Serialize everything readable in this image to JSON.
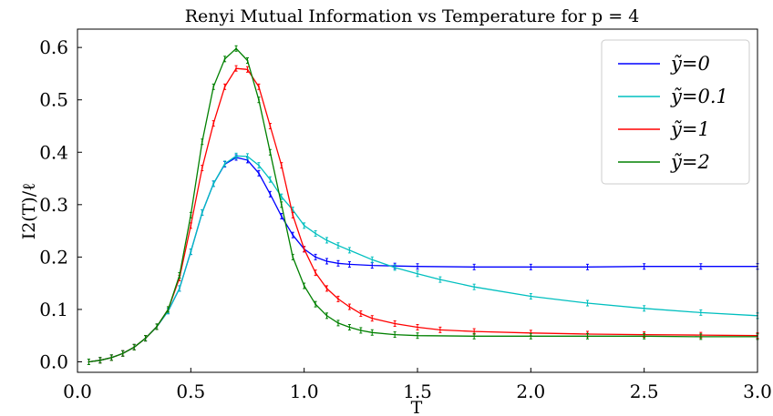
{
  "chart_data": {
    "type": "line",
    "title": "Renyi Mutual Information vs Temperature for p = 4",
    "xlabel": "T",
    "ylabel": "I2(T)/ℓ",
    "xlim": [
      0.0,
      3.0
    ],
    "ylim": [
      -0.02,
      0.635
    ],
    "xticks": [
      0.0,
      0.5,
      1.0,
      1.5,
      2.0,
      2.5,
      3.0
    ],
    "xtick_labels": [
      "0.0",
      "0.5",
      "1.0",
      "1.5",
      "2.0",
      "2.5",
      "3.0"
    ],
    "yticks": [
      0.0,
      0.1,
      0.2,
      0.3,
      0.4,
      0.5,
      0.6
    ],
    "ytick_labels": [
      "0.0",
      "0.1",
      "0.2",
      "0.3",
      "0.4",
      "0.5",
      "0.6"
    ],
    "grid": false,
    "legend_position": "top-right",
    "error_bars": true,
    "series": [
      {
        "name": "ỹ=0",
        "color": "#0000ff",
        "points": [
          [
            0.05,
            0.0
          ],
          [
            0.1,
            0.003
          ],
          [
            0.15,
            0.008
          ],
          [
            0.2,
            0.016
          ],
          [
            0.25,
            0.028
          ],
          [
            0.3,
            0.045
          ],
          [
            0.35,
            0.067
          ],
          [
            0.4,
            0.097
          ],
          [
            0.45,
            0.14
          ],
          [
            0.5,
            0.21
          ],
          [
            0.55,
            0.285
          ],
          [
            0.6,
            0.34
          ],
          [
            0.65,
            0.377
          ],
          [
            0.7,
            0.39
          ],
          [
            0.75,
            0.385
          ],
          [
            0.8,
            0.36
          ],
          [
            0.85,
            0.32
          ],
          [
            0.9,
            0.278
          ],
          [
            0.95,
            0.242
          ],
          [
            1.0,
            0.215
          ],
          [
            1.05,
            0.2
          ],
          [
            1.1,
            0.192
          ],
          [
            1.15,
            0.188
          ],
          [
            1.2,
            0.186
          ],
          [
            1.3,
            0.184
          ],
          [
            1.4,
            0.183
          ],
          [
            1.5,
            0.182
          ],
          [
            1.75,
            0.181
          ],
          [
            2.0,
            0.181
          ],
          [
            2.25,
            0.181
          ],
          [
            2.5,
            0.182
          ],
          [
            2.75,
            0.182
          ],
          [
            3.0,
            0.182
          ]
        ]
      },
      {
        "name": "ỹ=0.1",
        "color": "#00bfbf",
        "points": [
          [
            0.05,
            0.0
          ],
          [
            0.1,
            0.003
          ],
          [
            0.15,
            0.008
          ],
          [
            0.2,
            0.016
          ],
          [
            0.25,
            0.028
          ],
          [
            0.3,
            0.045
          ],
          [
            0.35,
            0.067
          ],
          [
            0.4,
            0.097
          ],
          [
            0.45,
            0.14
          ],
          [
            0.5,
            0.21
          ],
          [
            0.55,
            0.285
          ],
          [
            0.6,
            0.34
          ],
          [
            0.65,
            0.378
          ],
          [
            0.7,
            0.393
          ],
          [
            0.75,
            0.392
          ],
          [
            0.8,
            0.375
          ],
          [
            0.85,
            0.348
          ],
          [
            0.9,
            0.315
          ],
          [
            0.95,
            0.29
          ],
          [
            1.0,
            0.26
          ],
          [
            1.05,
            0.245
          ],
          [
            1.1,
            0.232
          ],
          [
            1.15,
            0.222
          ],
          [
            1.2,
            0.213
          ],
          [
            1.3,
            0.195
          ],
          [
            1.4,
            0.18
          ],
          [
            1.5,
            0.168
          ],
          [
            1.6,
            0.157
          ],
          [
            1.75,
            0.143
          ],
          [
            2.0,
            0.125
          ],
          [
            2.25,
            0.112
          ],
          [
            2.5,
            0.102
          ],
          [
            2.75,
            0.094
          ],
          [
            3.0,
            0.088
          ]
        ]
      },
      {
        "name": "ỹ=1",
        "color": "#ff0000",
        "points": [
          [
            0.05,
            0.0
          ],
          [
            0.1,
            0.003
          ],
          [
            0.15,
            0.008
          ],
          [
            0.2,
            0.016
          ],
          [
            0.25,
            0.028
          ],
          [
            0.3,
            0.045
          ],
          [
            0.35,
            0.067
          ],
          [
            0.4,
            0.1
          ],
          [
            0.45,
            0.16
          ],
          [
            0.5,
            0.26
          ],
          [
            0.55,
            0.37
          ],
          [
            0.6,
            0.455
          ],
          [
            0.65,
            0.525
          ],
          [
            0.7,
            0.56
          ],
          [
            0.75,
            0.558
          ],
          [
            0.8,
            0.525
          ],
          [
            0.85,
            0.45
          ],
          [
            0.9,
            0.375
          ],
          [
            0.95,
            0.28
          ],
          [
            1.0,
            0.215
          ],
          [
            1.05,
            0.17
          ],
          [
            1.1,
            0.14
          ],
          [
            1.15,
            0.12
          ],
          [
            1.2,
            0.105
          ],
          [
            1.25,
            0.092
          ],
          [
            1.3,
            0.083
          ],
          [
            1.4,
            0.073
          ],
          [
            1.5,
            0.066
          ],
          [
            1.6,
            0.061
          ],
          [
            1.75,
            0.058
          ],
          [
            2.0,
            0.055
          ],
          [
            2.25,
            0.053
          ],
          [
            2.5,
            0.052
          ],
          [
            2.75,
            0.051
          ],
          [
            3.0,
            0.05
          ]
        ]
      },
      {
        "name": "ỹ=2",
        "color": "#008000",
        "points": [
          [
            0.05,
            0.0
          ],
          [
            0.1,
            0.003
          ],
          [
            0.15,
            0.008
          ],
          [
            0.2,
            0.016
          ],
          [
            0.25,
            0.028
          ],
          [
            0.3,
            0.045
          ],
          [
            0.35,
            0.067
          ],
          [
            0.4,
            0.1
          ],
          [
            0.45,
            0.165
          ],
          [
            0.5,
            0.28
          ],
          [
            0.55,
            0.42
          ],
          [
            0.6,
            0.525
          ],
          [
            0.65,
            0.578
          ],
          [
            0.7,
            0.598
          ],
          [
            0.75,
            0.575
          ],
          [
            0.8,
            0.5
          ],
          [
            0.85,
            0.4
          ],
          [
            0.9,
            0.3
          ],
          [
            0.95,
            0.2
          ],
          [
            1.0,
            0.145
          ],
          [
            1.05,
            0.11
          ],
          [
            1.1,
            0.088
          ],
          [
            1.15,
            0.074
          ],
          [
            1.2,
            0.066
          ],
          [
            1.25,
            0.06
          ],
          [
            1.3,
            0.056
          ],
          [
            1.4,
            0.052
          ],
          [
            1.5,
            0.05
          ],
          [
            1.75,
            0.049
          ],
          [
            2.0,
            0.049
          ],
          [
            2.25,
            0.049
          ],
          [
            2.5,
            0.049
          ],
          [
            2.75,
            0.048
          ],
          [
            3.0,
            0.048
          ]
        ]
      }
    ]
  }
}
